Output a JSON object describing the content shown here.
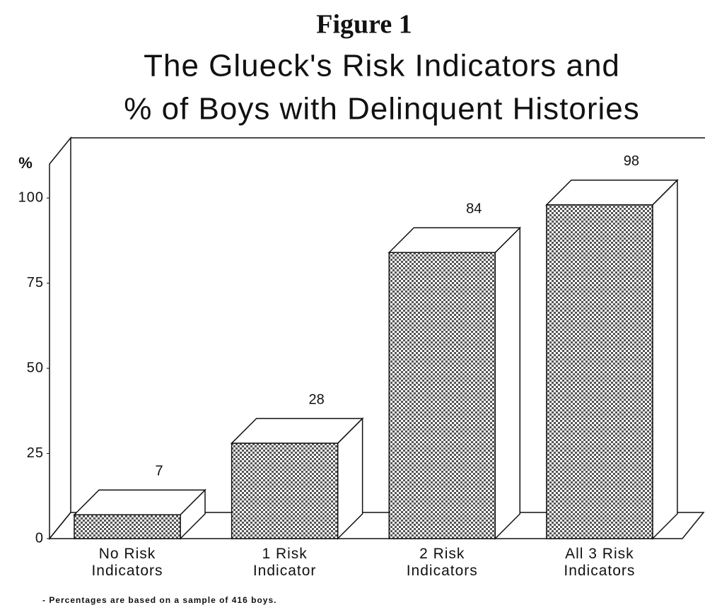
{
  "chart_data": {
    "type": "bar3d",
    "title": "Figure 1",
    "subtitle": [
      "The Glueck's Risk Indicators and",
      "% of Boys with Delinquent Histories"
    ],
    "ylabel": "%",
    "categories": [
      "No Risk Indicators",
      "1 Risk Indicator",
      "2 Risk Indicators",
      "All 3 Risk Indicators"
    ],
    "values": [
      7,
      28,
      84,
      98
    ],
    "color": "#555555",
    "ylim": [
      0,
      110
    ],
    "yticks": [
      0,
      25,
      50,
      75,
      100
    ],
    "note": "- Percentages are based on a sample of 416 boys."
  }
}
